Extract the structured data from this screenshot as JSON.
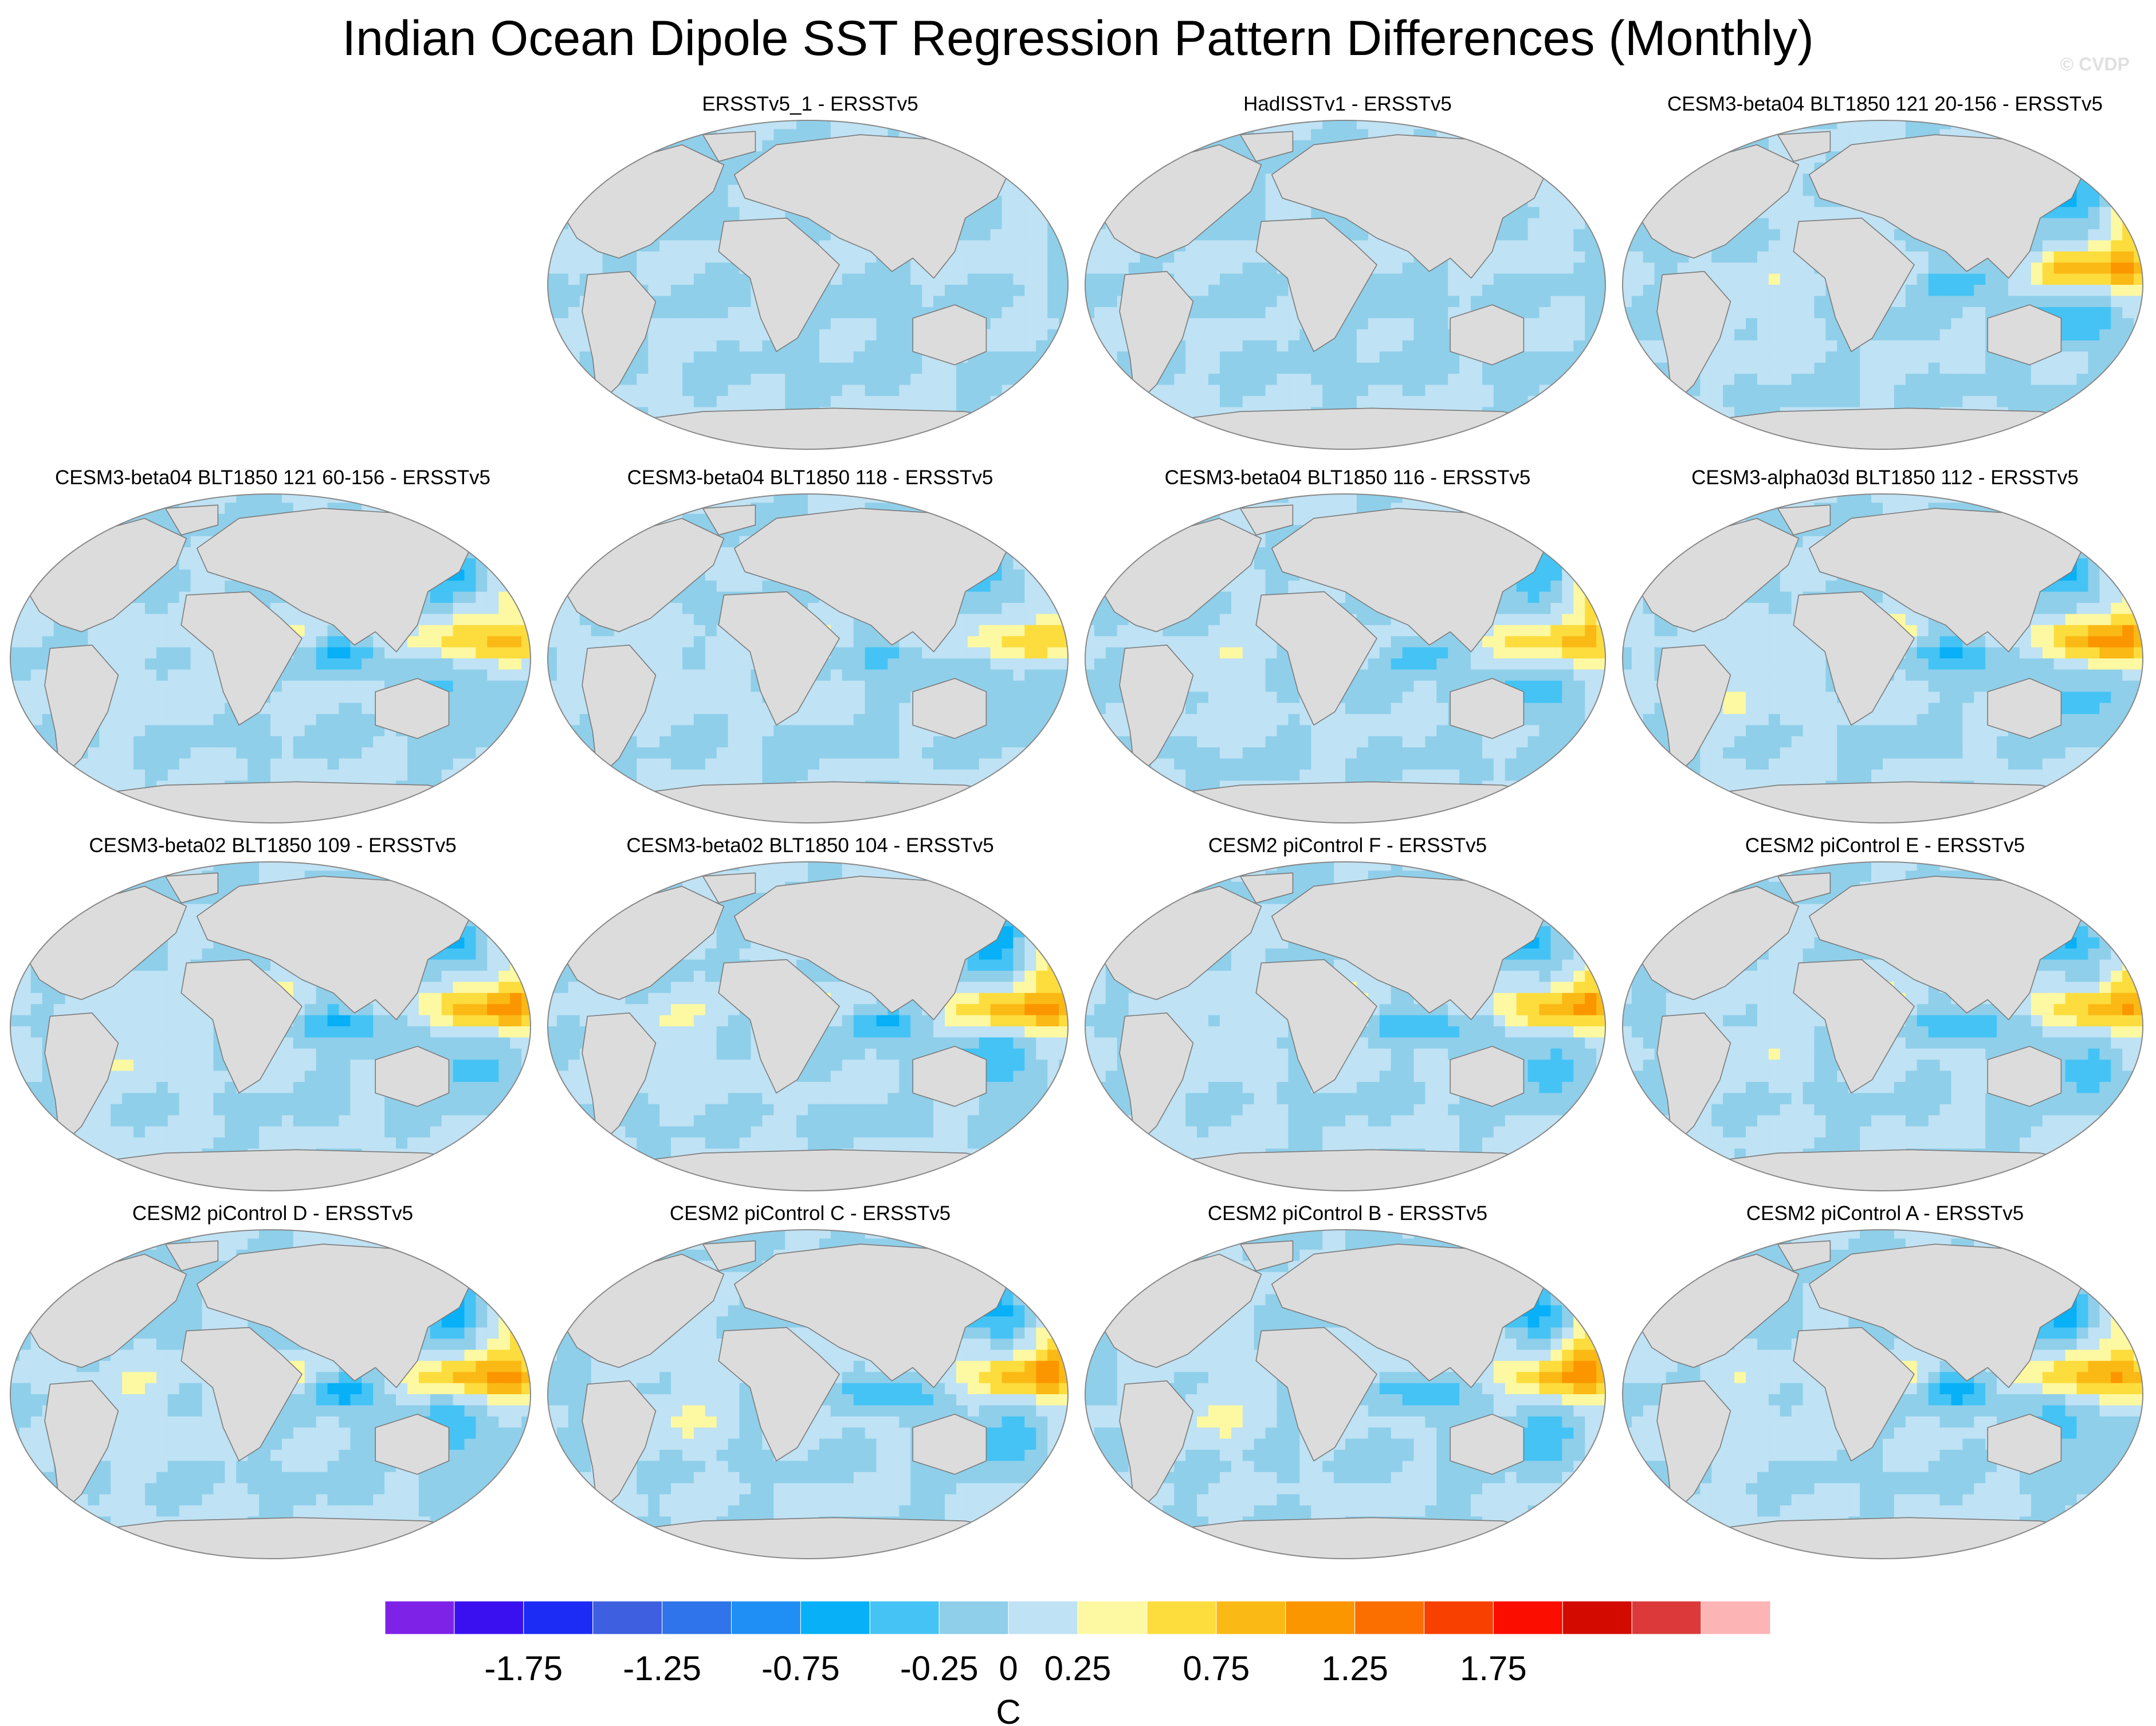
{
  "title": "Indian Ocean Dipole SST Regression Pattern Differences (Monthly)",
  "watermark": "© CVDP",
  "colors": {
    "land": "#dcdcdc",
    "coast": "#7a7a7a",
    "ocean_border": "#888888"
  },
  "chart_data": {
    "type": "heatmap",
    "projection": "Robinson (global, Pacific-centered view)",
    "variable": "SST regression pattern difference",
    "units": "C",
    "layout": {
      "rows": 4,
      "cols": 4,
      "empty_cells": [
        "row1-col1"
      ]
    },
    "panels": [
      {
        "id": "p2",
        "row": 1,
        "col": 2,
        "title": "ERSSTv5_1 - ERSSTv5",
        "pattern": "weak",
        "amplitude": 0.6,
        "seed": 11
      },
      {
        "id": "p3",
        "row": 1,
        "col": 3,
        "title": "HadISSTv1 - ERSSTv5",
        "pattern": "weak",
        "amplitude": 0.7,
        "seed": 23
      },
      {
        "id": "p4",
        "row": 1,
        "col": 4,
        "title": "CESM3-beta04 BLT1850 121 20-156 - ERSSTv5",
        "pattern": "model",
        "amplitude": 1.0,
        "seed": 37
      },
      {
        "id": "p5",
        "row": 2,
        "col": 1,
        "title": "CESM3-beta04 BLT1850 121 60-156 - ERSSTv5",
        "pattern": "model",
        "amplitude": 0.8,
        "seed": 41
      },
      {
        "id": "p6",
        "row": 2,
        "col": 2,
        "title": "CESM3-beta04 BLT1850 118 - ERSSTv5",
        "pattern": "model",
        "amplitude": 0.6,
        "seed": 53
      },
      {
        "id": "p7",
        "row": 2,
        "col": 3,
        "title": "CESM3-beta04 BLT1850 116 - ERSSTv5",
        "pattern": "model",
        "amplitude": 0.8,
        "seed": 67
      },
      {
        "id": "p8",
        "row": 2,
        "col": 4,
        "title": "CESM3-alpha03d BLT1850 112 - ERSSTv5",
        "pattern": "model",
        "amplitude": 1.05,
        "seed": 71
      },
      {
        "id": "p9",
        "row": 3,
        "col": 1,
        "title": "CESM3-beta02 BLT1850 109 - ERSSTv5",
        "pattern": "model",
        "amplitude": 1.0,
        "seed": 83
      },
      {
        "id": "p10",
        "row": 3,
        "col": 2,
        "title": "CESM3-beta02 BLT1850 104 - ERSSTv5",
        "pattern": "model",
        "amplitude": 1.0,
        "seed": 97
      },
      {
        "id": "p11",
        "row": 3,
        "col": 3,
        "title": "CESM2 piControl F - ERSSTv5",
        "pattern": "model",
        "amplitude": 0.95,
        "seed": 101
      },
      {
        "id": "p12",
        "row": 3,
        "col": 4,
        "title": "CESM2 piControl E - ERSSTv5",
        "pattern": "model",
        "amplitude": 0.9,
        "seed": 113
      },
      {
        "id": "p13",
        "row": 4,
        "col": 1,
        "title": "CESM2 piControl D - ERSSTv5",
        "pattern": "model",
        "amplitude": 1.0,
        "seed": 127
      },
      {
        "id": "p14",
        "row": 4,
        "col": 2,
        "title": "CESM2 piControl C - ERSSTv5",
        "pattern": "model",
        "amplitude": 1.0,
        "seed": 131
      },
      {
        "id": "p15",
        "row": 4,
        "col": 3,
        "title": "CESM2 piControl B - ERSSTv5",
        "pattern": "model",
        "amplitude": 1.0,
        "seed": 149
      },
      {
        "id": "p16",
        "row": 4,
        "col": 4,
        "title": "CESM2 piControl A - ERSSTv5",
        "pattern": "model",
        "amplitude": 0.95,
        "seed": 157
      }
    ],
    "colorbar": {
      "levels": [
        -2,
        -1.75,
        -1.5,
        -1.25,
        -1,
        -0.75,
        -0.5,
        -0.25,
        0,
        0.25,
        0.5,
        0.75,
        1,
        1.25,
        1.5,
        1.75,
        2
      ],
      "colors": [
        "#7f22e8",
        "#3b10f0",
        "#1d2cf5",
        "#3e5fe0",
        "#2f74ea",
        "#1f8ff5",
        "#08b0f7",
        "#45c3f5",
        "#8fcfea",
        "#bfe2f4",
        "#fdf8a2",
        "#fddd3d",
        "#fbb915",
        "#fb9600",
        "#fb6f00",
        "#f84000",
        "#fb0d00",
        "#d20a00",
        "#dc3a3a",
        "#fcb4b4"
      ],
      "tick_labels": [
        "-1.75",
        "-1.25",
        "-0.75",
        "-0.25",
        "0",
        "0.25",
        "0.75",
        "1.25",
        "1.75"
      ],
      "tick_values": [
        -1.75,
        -1.25,
        -0.75,
        -0.25,
        0,
        0.25,
        0.75,
        1.25,
        1.75
      ],
      "label": "C"
    }
  }
}
